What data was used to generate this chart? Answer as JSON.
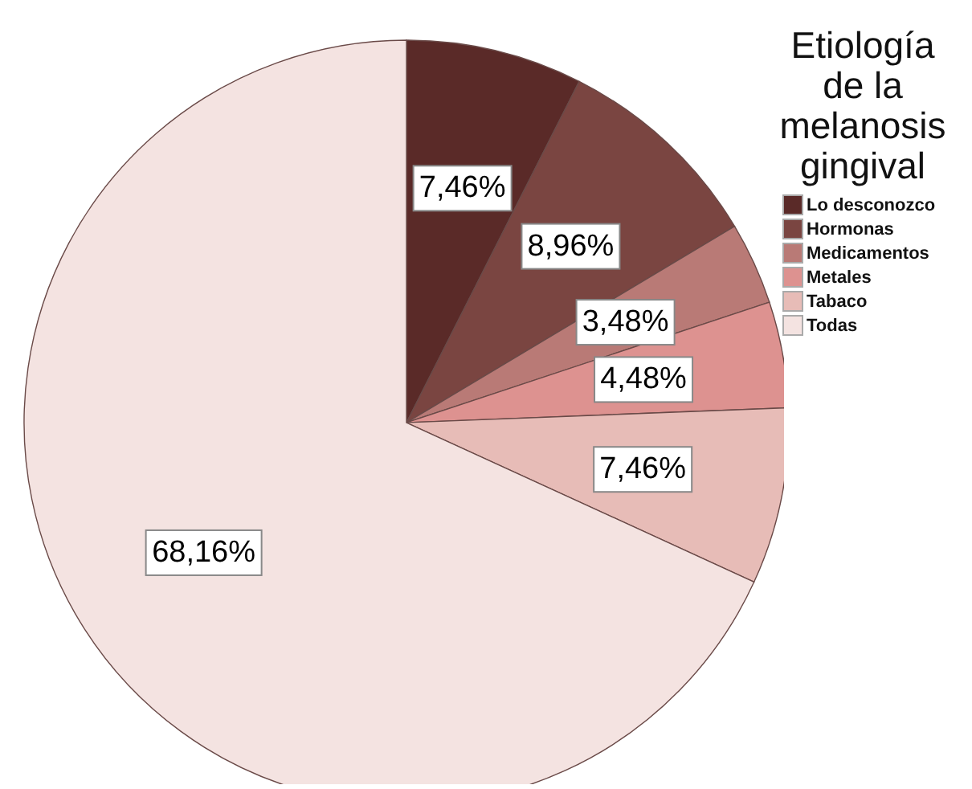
{
  "chart_data": {
    "type": "pie",
    "legend_title": "Etiología de la melanosis gingival",
    "legend": "top right",
    "categories": [
      "Lo desconozco",
      "Hormonas",
      "Medicamentos",
      "Metales",
      "Tabaco",
      "Todas"
    ],
    "values": [
      7.46,
      8.96,
      3.48,
      4.48,
      7.46,
      68.16
    ],
    "colors": [
      "#5a2a28",
      "#7a4541",
      "#b97a76",
      "#dd9290",
      "#e7bcb7",
      "#f4e3e1"
    ],
    "value_labels": [
      "7,46%",
      "8,96%",
      "3,48%",
      "4,48%",
      "7,46%",
      "68,16%"
    ]
  }
}
